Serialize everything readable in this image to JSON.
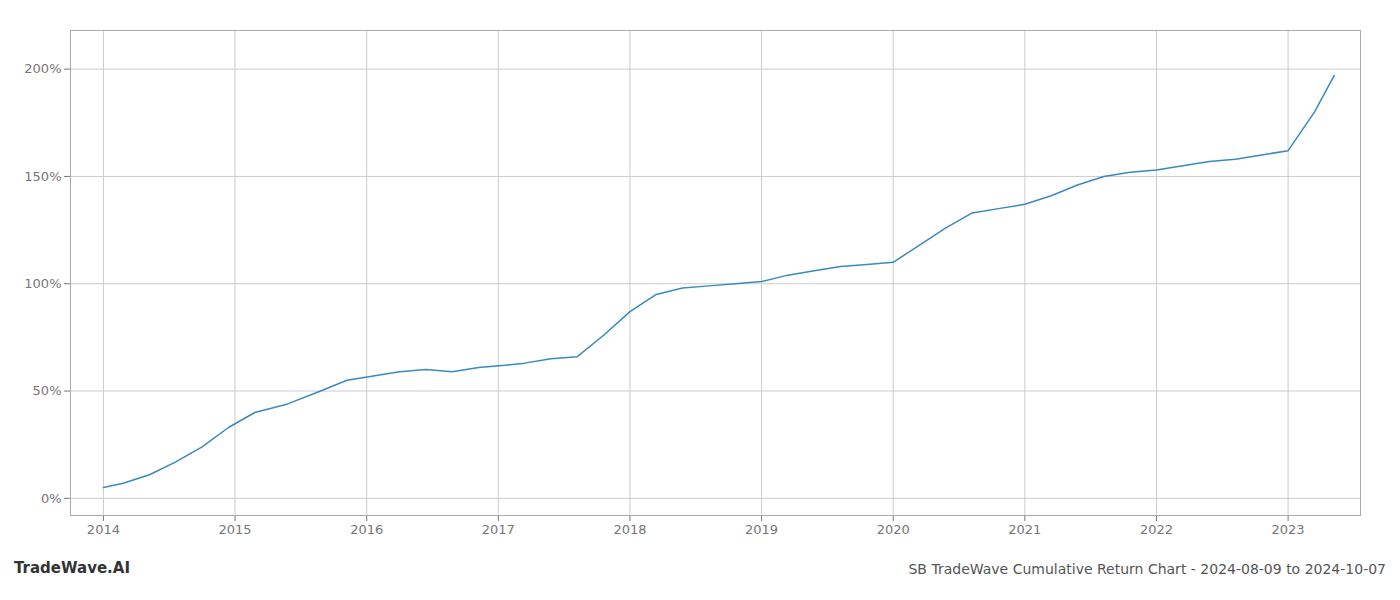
{
  "chart_data": {
    "type": "line",
    "title": "SB TradeWave Cumulative Return Chart - 2024-08-09 to 2024-10-07",
    "annotations": [
      "TradeWave.AI"
    ],
    "x": [
      2014.0,
      2014.15,
      2014.35,
      2014.55,
      2014.75,
      2014.95,
      2015.15,
      2015.4,
      2015.65,
      2015.85,
      2016.05,
      2016.25,
      2016.45,
      2016.65,
      2016.85,
      2017.05,
      2017.2,
      2017.4,
      2017.6,
      2017.8,
      2018.0,
      2018.2,
      2018.4,
      2018.6,
      2018.8,
      2019.0,
      2019.2,
      2019.4,
      2019.6,
      2019.8,
      2020.0,
      2020.2,
      2020.4,
      2020.6,
      2020.8,
      2021.0,
      2021.2,
      2021.4,
      2021.6,
      2021.8,
      2022.0,
      2022.2,
      2022.4,
      2022.6,
      2022.8,
      2023.0,
      2023.2,
      2023.35
    ],
    "values": [
      5,
      7,
      11,
      17,
      24,
      33,
      40,
      44,
      50,
      55,
      57,
      59,
      60,
      59,
      61,
      62,
      63,
      65,
      66,
      76,
      87,
      95,
      98,
      99,
      100,
      101,
      104,
      106,
      108,
      109,
      110,
      118,
      126,
      133,
      135,
      137,
      141,
      146,
      150,
      152,
      153,
      155,
      157,
      158,
      160,
      162,
      180,
      197
    ],
    "color": "#3a8abf",
    "xlim": [
      2013.75,
      2023.55
    ],
    "xticks": [
      2014,
      2015,
      2016,
      2017,
      2018,
      2019,
      2020,
      2021,
      2022,
      2023
    ],
    "ylim": [
      -8,
      218
    ],
    "yticks": [
      {
        "value": 0,
        "label": "0%"
      },
      {
        "value": 50,
        "label": "50%"
      },
      {
        "value": 100,
        "label": "100%"
      },
      {
        "value": 150,
        "label": "150%"
      },
      {
        "value": 200,
        "label": "200%"
      }
    ],
    "grid": true
  }
}
